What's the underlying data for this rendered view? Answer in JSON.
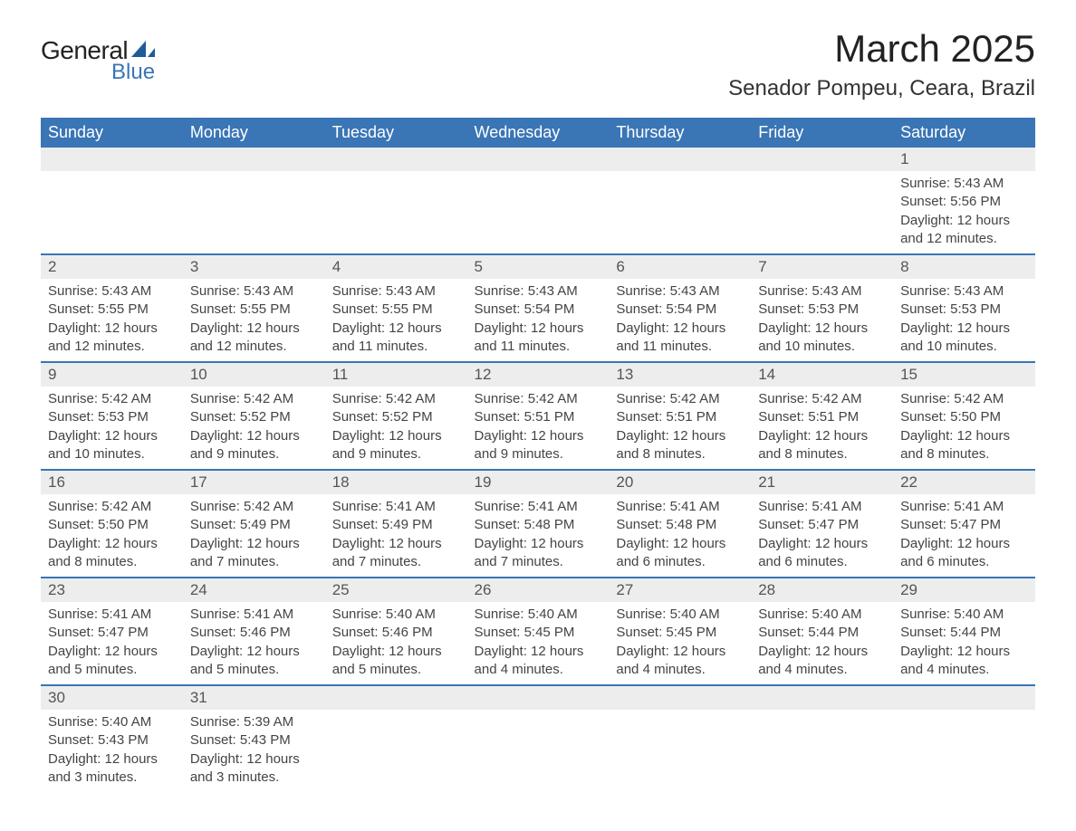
{
  "logo": {
    "text_general": "General",
    "text_blue": "Blue",
    "sail_color": "#1f5c99"
  },
  "title": "March 2025",
  "location": "Senador Pompeu, Ceara, Brazil",
  "colors": {
    "header_bg": "#3a75b5",
    "header_text": "#ffffff",
    "daynum_bg": "#ededed",
    "row_border": "#3a75b5",
    "body_text": "#444444"
  },
  "typography": {
    "title_fontsize": 42,
    "location_fontsize": 24,
    "weekday_fontsize": 18,
    "daynum_fontsize": 17,
    "cell_fontsize": 15
  },
  "weekdays": [
    "Sunday",
    "Monday",
    "Tuesday",
    "Wednesday",
    "Thursday",
    "Friday",
    "Saturday"
  ],
  "weeks": [
    {
      "nums": [
        "",
        "",
        "",
        "",
        "",
        "",
        "1"
      ],
      "cells": [
        null,
        null,
        null,
        null,
        null,
        null,
        {
          "sunrise": "Sunrise: 5:43 AM",
          "sunset": "Sunset: 5:56 PM",
          "daylight1": "Daylight: 12 hours",
          "daylight2": "and 12 minutes."
        }
      ]
    },
    {
      "nums": [
        "2",
        "3",
        "4",
        "5",
        "6",
        "7",
        "8"
      ],
      "cells": [
        {
          "sunrise": "Sunrise: 5:43 AM",
          "sunset": "Sunset: 5:55 PM",
          "daylight1": "Daylight: 12 hours",
          "daylight2": "and 12 minutes."
        },
        {
          "sunrise": "Sunrise: 5:43 AM",
          "sunset": "Sunset: 5:55 PM",
          "daylight1": "Daylight: 12 hours",
          "daylight2": "and 12 minutes."
        },
        {
          "sunrise": "Sunrise: 5:43 AM",
          "sunset": "Sunset: 5:55 PM",
          "daylight1": "Daylight: 12 hours",
          "daylight2": "and 11 minutes."
        },
        {
          "sunrise": "Sunrise: 5:43 AM",
          "sunset": "Sunset: 5:54 PM",
          "daylight1": "Daylight: 12 hours",
          "daylight2": "and 11 minutes."
        },
        {
          "sunrise": "Sunrise: 5:43 AM",
          "sunset": "Sunset: 5:54 PM",
          "daylight1": "Daylight: 12 hours",
          "daylight2": "and 11 minutes."
        },
        {
          "sunrise": "Sunrise: 5:43 AM",
          "sunset": "Sunset: 5:53 PM",
          "daylight1": "Daylight: 12 hours",
          "daylight2": "and 10 minutes."
        },
        {
          "sunrise": "Sunrise: 5:43 AM",
          "sunset": "Sunset: 5:53 PM",
          "daylight1": "Daylight: 12 hours",
          "daylight2": "and 10 minutes."
        }
      ]
    },
    {
      "nums": [
        "9",
        "10",
        "11",
        "12",
        "13",
        "14",
        "15"
      ],
      "cells": [
        {
          "sunrise": "Sunrise: 5:42 AM",
          "sunset": "Sunset: 5:53 PM",
          "daylight1": "Daylight: 12 hours",
          "daylight2": "and 10 minutes."
        },
        {
          "sunrise": "Sunrise: 5:42 AM",
          "sunset": "Sunset: 5:52 PM",
          "daylight1": "Daylight: 12 hours",
          "daylight2": "and 9 minutes."
        },
        {
          "sunrise": "Sunrise: 5:42 AM",
          "sunset": "Sunset: 5:52 PM",
          "daylight1": "Daylight: 12 hours",
          "daylight2": "and 9 minutes."
        },
        {
          "sunrise": "Sunrise: 5:42 AM",
          "sunset": "Sunset: 5:51 PM",
          "daylight1": "Daylight: 12 hours",
          "daylight2": "and 9 minutes."
        },
        {
          "sunrise": "Sunrise: 5:42 AM",
          "sunset": "Sunset: 5:51 PM",
          "daylight1": "Daylight: 12 hours",
          "daylight2": "and 8 minutes."
        },
        {
          "sunrise": "Sunrise: 5:42 AM",
          "sunset": "Sunset: 5:51 PM",
          "daylight1": "Daylight: 12 hours",
          "daylight2": "and 8 minutes."
        },
        {
          "sunrise": "Sunrise: 5:42 AM",
          "sunset": "Sunset: 5:50 PM",
          "daylight1": "Daylight: 12 hours",
          "daylight2": "and 8 minutes."
        }
      ]
    },
    {
      "nums": [
        "16",
        "17",
        "18",
        "19",
        "20",
        "21",
        "22"
      ],
      "cells": [
        {
          "sunrise": "Sunrise: 5:42 AM",
          "sunset": "Sunset: 5:50 PM",
          "daylight1": "Daylight: 12 hours",
          "daylight2": "and 8 minutes."
        },
        {
          "sunrise": "Sunrise: 5:42 AM",
          "sunset": "Sunset: 5:49 PM",
          "daylight1": "Daylight: 12 hours",
          "daylight2": "and 7 minutes."
        },
        {
          "sunrise": "Sunrise: 5:41 AM",
          "sunset": "Sunset: 5:49 PM",
          "daylight1": "Daylight: 12 hours",
          "daylight2": "and 7 minutes."
        },
        {
          "sunrise": "Sunrise: 5:41 AM",
          "sunset": "Sunset: 5:48 PM",
          "daylight1": "Daylight: 12 hours",
          "daylight2": "and 7 minutes."
        },
        {
          "sunrise": "Sunrise: 5:41 AM",
          "sunset": "Sunset: 5:48 PM",
          "daylight1": "Daylight: 12 hours",
          "daylight2": "and 6 minutes."
        },
        {
          "sunrise": "Sunrise: 5:41 AM",
          "sunset": "Sunset: 5:47 PM",
          "daylight1": "Daylight: 12 hours",
          "daylight2": "and 6 minutes."
        },
        {
          "sunrise": "Sunrise: 5:41 AM",
          "sunset": "Sunset: 5:47 PM",
          "daylight1": "Daylight: 12 hours",
          "daylight2": "and 6 minutes."
        }
      ]
    },
    {
      "nums": [
        "23",
        "24",
        "25",
        "26",
        "27",
        "28",
        "29"
      ],
      "cells": [
        {
          "sunrise": "Sunrise: 5:41 AM",
          "sunset": "Sunset: 5:47 PM",
          "daylight1": "Daylight: 12 hours",
          "daylight2": "and 5 minutes."
        },
        {
          "sunrise": "Sunrise: 5:41 AM",
          "sunset": "Sunset: 5:46 PM",
          "daylight1": "Daylight: 12 hours",
          "daylight2": "and 5 minutes."
        },
        {
          "sunrise": "Sunrise: 5:40 AM",
          "sunset": "Sunset: 5:46 PM",
          "daylight1": "Daylight: 12 hours",
          "daylight2": "and 5 minutes."
        },
        {
          "sunrise": "Sunrise: 5:40 AM",
          "sunset": "Sunset: 5:45 PM",
          "daylight1": "Daylight: 12 hours",
          "daylight2": "and 4 minutes."
        },
        {
          "sunrise": "Sunrise: 5:40 AM",
          "sunset": "Sunset: 5:45 PM",
          "daylight1": "Daylight: 12 hours",
          "daylight2": "and 4 minutes."
        },
        {
          "sunrise": "Sunrise: 5:40 AM",
          "sunset": "Sunset: 5:44 PM",
          "daylight1": "Daylight: 12 hours",
          "daylight2": "and 4 minutes."
        },
        {
          "sunrise": "Sunrise: 5:40 AM",
          "sunset": "Sunset: 5:44 PM",
          "daylight1": "Daylight: 12 hours",
          "daylight2": "and 4 minutes."
        }
      ]
    },
    {
      "nums": [
        "30",
        "31",
        "",
        "",
        "",
        "",
        ""
      ],
      "cells": [
        {
          "sunrise": "Sunrise: 5:40 AM",
          "sunset": "Sunset: 5:43 PM",
          "daylight1": "Daylight: 12 hours",
          "daylight2": "and 3 minutes."
        },
        {
          "sunrise": "Sunrise: 5:39 AM",
          "sunset": "Sunset: 5:43 PM",
          "daylight1": "Daylight: 12 hours",
          "daylight2": "and 3 minutes."
        },
        null,
        null,
        null,
        null,
        null
      ]
    }
  ]
}
